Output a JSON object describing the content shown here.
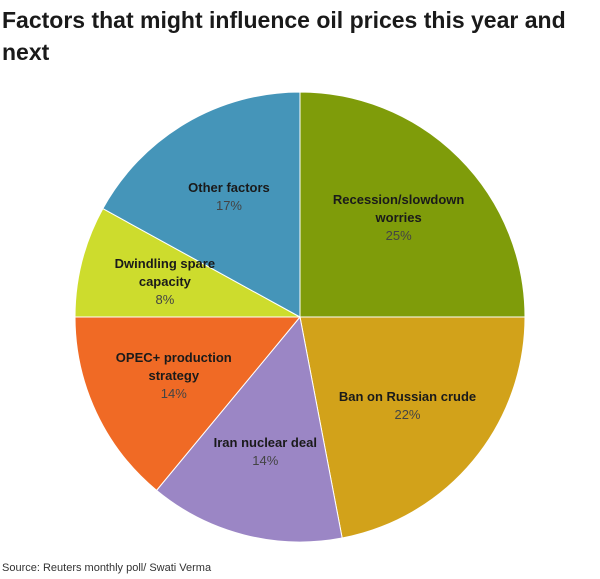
{
  "chart_data": {
    "type": "pie",
    "title": "Factors that might influence oil prices this year and next",
    "source": "Source: Reuters monthly poll/ Swati Verma",
    "categories": [
      "Recession/slowdown worries",
      "Ban on Russian crude",
      "Iran nuclear deal",
      "OPEC+ production strategy",
      "Dwindling spare capacity",
      "Other factors"
    ],
    "values": [
      25,
      22,
      14,
      14,
      8,
      17
    ],
    "value_labels": [
      "25%",
      "22%",
      "14%",
      "14%",
      "8%",
      "17%"
    ],
    "colors": [
      "#7f9c0a",
      "#d2a21a",
      "#9b86c5",
      "#f06a25",
      "#cddc2d",
      "#4595b9"
    ]
  }
}
